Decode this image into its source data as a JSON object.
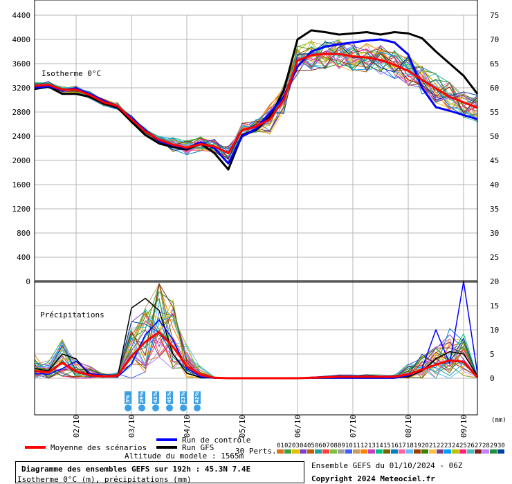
{
  "chart_data": {
    "type": "line",
    "title": "Diagramme des ensembles GEFS sur 192h : 45.3N 7.4E",
    "subtitle": "Isotherme 0°C (m), précipitations (mm)",
    "panels": {
      "isotherm": {
        "label": "Isotherme 0°C",
        "ylim": [
          0,
          4400
        ],
        "yticks": [
          0,
          400,
          800,
          1200,
          1600,
          2000,
          2400,
          2800,
          3200,
          3600,
          4000,
          4400
        ],
        "ytick_labels": [
          "0",
          "400",
          "800",
          "1200",
          "1600",
          "2000",
          "2400",
          "2800",
          "3200",
          "3600",
          "4000",
          "4400"
        ],
        "x": [
          0,
          6,
          12,
          18,
          24,
          30,
          36,
          42,
          48,
          54,
          60,
          66,
          72,
          78,
          84,
          90,
          96,
          102,
          108,
          114,
          120,
          126,
          132,
          138,
          144,
          150,
          156,
          162,
          168,
          174,
          180,
          186,
          192
        ],
        "series": [
          {
            "name": "Moyenne des scénarios",
            "color": "#ff0000",
            "values": [
              3230,
              3250,
              3170,
              3170,
              3080,
              2960,
              2900,
              2680,
              2480,
              2340,
              2260,
              2210,
              2270,
              2230,
              2120,
              2500,
              2560,
              2680,
              3000,
              3650,
              3740,
              3760,
              3760,
              3720,
              3700,
              3660,
              3580,
              3480,
              3330,
              3190,
              3050,
              2960,
              2870
            ]
          },
          {
            "name": "Run de contrôle",
            "color": "#0000ff",
            "values": [
              3200,
              3230,
              3160,
              3190,
              3100,
              2980,
              2890,
              2700,
              2500,
              2320,
              2250,
              2200,
              2300,
              2200,
              1950,
              2400,
              2520,
              2780,
              3050,
              3550,
              3800,
              3880,
              3920,
              3950,
              3980,
              4000,
              3950,
              3750,
              3200,
              2880,
              2820,
              2750,
              2680
            ]
          },
          {
            "name": "Run GFS",
            "color": "#000000",
            "values": [
              3180,
              3220,
              3100,
              3100,
              3050,
              2940,
              2870,
              2640,
              2420,
              2280,
              2220,
              2180,
              2280,
              2120,
              1850,
              2420,
              2500,
              2720,
              3150,
              4000,
              4150,
              4120,
              4080,
              4100,
              4120,
              4080,
              4120,
              4100,
              4020,
              3800,
              3600,
              3400,
              3100
            ]
          }
        ]
      },
      "precip": {
        "label": "Précipitations",
        "ylim": [
          0,
          20
        ],
        "yticks": [
          0,
          5,
          10,
          15,
          20
        ],
        "ytick_labels": [
          "0",
          "5",
          "10",
          "15",
          "20"
        ],
        "x": [
          0,
          6,
          12,
          18,
          24,
          30,
          36,
          42,
          48,
          54,
          60,
          66,
          72,
          78,
          84,
          90,
          96,
          102,
          108,
          114,
          120,
          126,
          132,
          138,
          144,
          150,
          156,
          162,
          168,
          174,
          180,
          186,
          192
        ],
        "series": [
          {
            "name": "Moyenne des scénarios",
            "color": "#ff0000",
            "values": [
              1.5,
              1.2,
              3.2,
              1.4,
              0.6,
              0.4,
              0.5,
              4.5,
              7.5,
              9.5,
              6.5,
              2.5,
              0.7,
              0.1,
              0,
              0,
              0,
              0,
              0,
              0,
              0.1,
              0.2,
              0.3,
              0.3,
              0.3,
              0.3,
              0.3,
              0.8,
              1.8,
              2.8,
              3.7,
              3.4,
              0.2
            ]
          },
          {
            "name": "Run de contrôle",
            "color": "#0000ff",
            "values": [
              1.0,
              0.8,
              2.0,
              3.5,
              1.0,
              0.5,
              0.3,
              3.0,
              9.0,
              12.0,
              8.0,
              2.0,
              0.3,
              0,
              0,
              0,
              0,
              0,
              0,
              0,
              0,
              0,
              0,
              0,
              0,
              0,
              0,
              0.5,
              2.0,
              10.0,
              3.0,
              29.0,
              1.0
            ]
          },
          {
            "name": "Run GFS",
            "color": "#000000",
            "values": [
              2.0,
              1.5,
              5.0,
              4.0,
              0.5,
              0.3,
              0.3,
              14.5,
              16.5,
              14.0,
              5.0,
              1.0,
              0.2,
              0,
              0,
              0,
              0,
              0,
              0,
              0,
              0,
              0,
              0,
              0,
              0,
              0,
              0,
              0.3,
              1.5,
              4.0,
              5.5,
              5.0,
              0.5
            ]
          }
        ]
      }
    },
    "x_tick_labels": [
      "02/10",
      "03/10",
      "04/10",
      "05/10",
      "06/10",
      "07/10",
      "08/10",
      "09/10"
    ],
    "right_axis_labels": [
      "0",
      "5",
      "10",
      "15",
      "20",
      "25",
      "30",
      "35",
      "40",
      "45",
      "50",
      "55",
      "60",
      "65",
      "70",
      "75"
    ],
    "right_axis_unit": "(mm)",
    "snow_probabilities": [
      "3%",
      "29%",
      "42%",
      "45%",
      "23%",
      "42%"
    ],
    "legend": [
      {
        "name": "Moyenne des scénarios",
        "color": "#ff0000"
      },
      {
        "name": "Run de contrôle",
        "color": "#0000ff"
      },
      {
        "name": "Run GFS",
        "color": "#000000"
      }
    ],
    "perturbations": {
      "label": "30 Perts.",
      "labels": [
        "01",
        "02",
        "03",
        "04",
        "05",
        "06",
        "07",
        "08",
        "09",
        "10",
        "11",
        "12",
        "13",
        "14",
        "15",
        "16",
        "17",
        "18",
        "19",
        "20",
        "21",
        "22",
        "23",
        "24",
        "25",
        "26",
        "27",
        "28",
        "29",
        "30"
      ],
      "colors": [
        "#e07020",
        "#40a040",
        "#e0c000",
        "#8040c0",
        "#c06000",
        "#20a0a0",
        "#ff4040",
        "#80c040",
        "#a0a0a0",
        "#4060ff",
        "#c0a060",
        "#ff8000",
        "#c040c0",
        "#00c080",
        "#806000",
        "#0080c0",
        "#ff60a0",
        "#60c0ff",
        "#a04000",
        "#408000",
        "#ffc040",
        "#804080",
        "#00a0ff",
        "#c0c000",
        "#ff2080",
        "#40c0c0",
        "#802020",
        "#c080ff",
        "#209040",
        "#0040a0"
      ]
    },
    "model_altitude": "Altitude du modele : 1565m",
    "ensemble_info": "Ensemble GEFS du 01/10/2024 - 06Z",
    "copyright": "Copyright 2024 Meteociel.fr"
  }
}
